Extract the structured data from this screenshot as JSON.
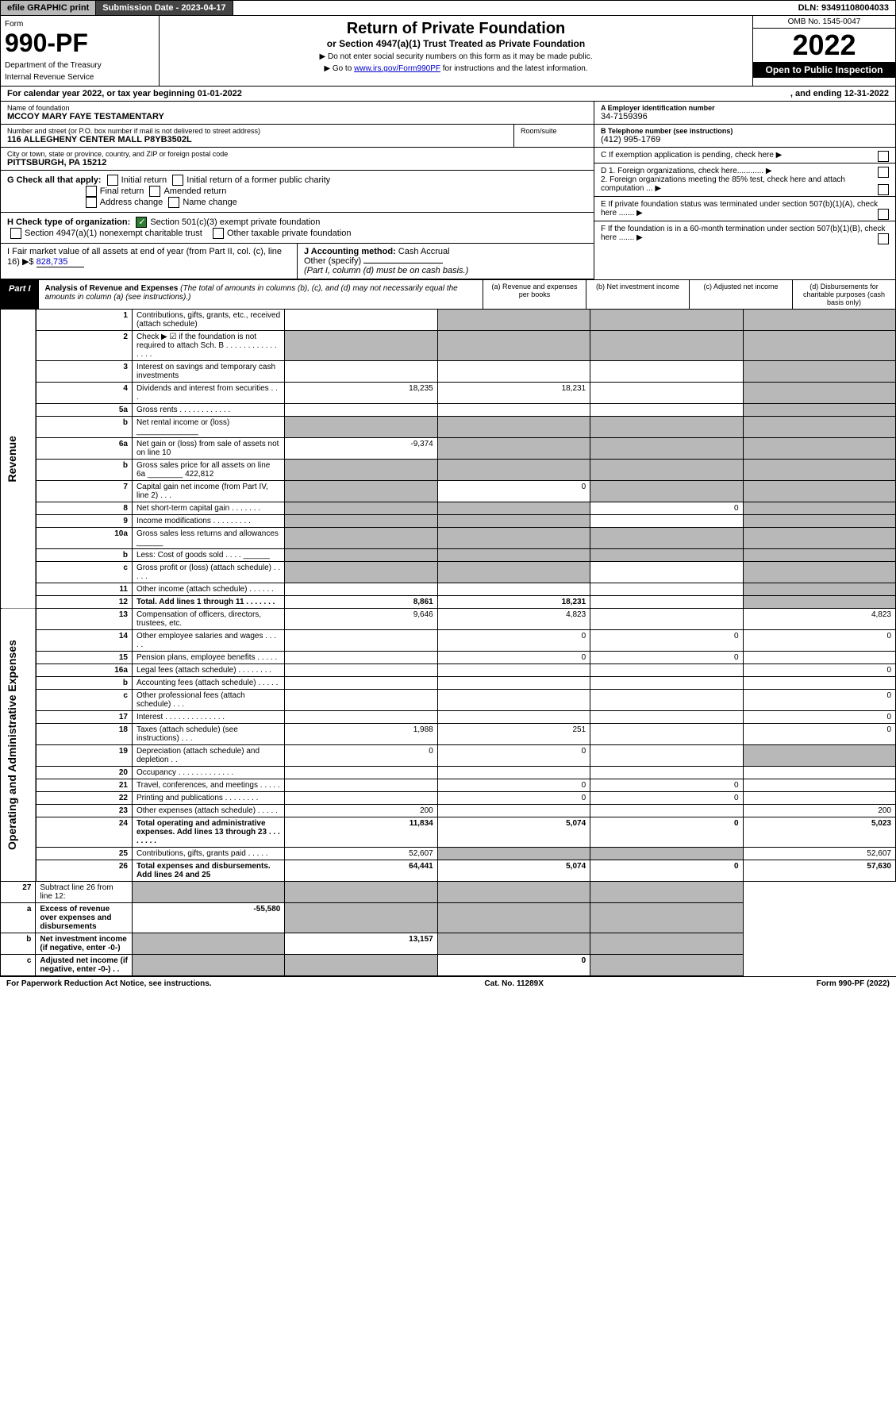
{
  "topbar": {
    "efile": "efile GRAPHIC print",
    "subdate_label": "Submission Date - 2023-04-17",
    "dln": "DLN: 93491108004033"
  },
  "header": {
    "form_label": "Form",
    "form_num": "990-PF",
    "dept": "Department of the Treasury",
    "irs": "Internal Revenue Service",
    "title": "Return of Private Foundation",
    "subtitle": "or Section 4947(a)(1) Trust Treated as Private Foundation",
    "inst1": "▶ Do not enter social security numbers on this form as it may be made public.",
    "inst2_pre": "▶ Go to ",
    "inst2_link": "www.irs.gov/Form990PF",
    "inst2_post": " for instructions and the latest information.",
    "omb": "OMB No. 1545-0047",
    "year": "2022",
    "open": "Open to Public Inspection"
  },
  "calyear": {
    "left": "For calendar year 2022, or tax year beginning 01-01-2022",
    "right": ", and ending 12-31-2022"
  },
  "entity": {
    "name_label": "Name of foundation",
    "name": "MCCOY MARY FAYE TESTAMENTARY",
    "addr_label": "Number and street (or P.O. box number if mail is not delivered to street address)",
    "addr": "116 ALLEGHENY CENTER MALL P8YB3502L",
    "room_label": "Room/suite",
    "city_label": "City or town, state or province, country, and ZIP or foreign postal code",
    "city": "PITTSBURGH, PA  15212",
    "ein_label": "A Employer identification number",
    "ein": "34-7159396",
    "tel_label": "B Telephone number (see instructions)",
    "tel": "(412) 995-1769",
    "c_label": "C If exemption application is pending, check here",
    "d1": "D 1. Foreign organizations, check here............",
    "d2": "2. Foreign organizations meeting the 85% test, check here and attach computation ...",
    "e": "E If private foundation status was terminated under section 507(b)(1)(A), check here .......",
    "f": "F If the foundation is in a 60-month termination under section 507(b)(1)(B), check here ......."
  },
  "checks": {
    "g_label": "G Check all that apply:",
    "g_opts": [
      "Initial return",
      "Initial return of a former public charity",
      "Final return",
      "Amended return",
      "Address change",
      "Name change"
    ],
    "h_label": "H Check type of organization:",
    "h_501c3": "Section 501(c)(3) exempt private foundation",
    "h_4947": "Section 4947(a)(1) nonexempt charitable trust",
    "h_other": "Other taxable private foundation",
    "i_label": "I Fair market value of all assets at end of year (from Part II, col. (c), line 16)",
    "i_value": "828,735",
    "j_label": "J Accounting method:",
    "j_cash": "Cash",
    "j_accrual": "Accrual",
    "j_other": "Other (specify)",
    "j_note": "(Part I, column (d) must be on cash basis.)"
  },
  "part1": {
    "tag": "Part I",
    "title": "Analysis of Revenue and Expenses",
    "title_note": "(The total of amounts in columns (b), (c), and (d) may not necessarily equal the amounts in column (a) (see instructions).)",
    "cols": {
      "a": "(a) Revenue and expenses per books",
      "b": "(b) Net investment income",
      "c": "(c) Adjusted net income",
      "d": "(d) Disbursements for charitable purposes (cash basis only)"
    }
  },
  "sections": {
    "rev": "Revenue",
    "ope": "Operating and Administrative Expenses"
  },
  "rows": [
    {
      "n": "1",
      "d": "Contributions, gifts, grants, etc., received (attach schedule)",
      "a": "",
      "b": "grey",
      "c": "grey",
      "dcol": "grey"
    },
    {
      "n": "2",
      "d": "Check ▶ ☑ if the foundation is not required to attach Sch. B   . . . . . . . . . . . . . . . .",
      "a": "grey",
      "b": "grey",
      "c": "grey",
      "dcol": "grey"
    },
    {
      "n": "3",
      "d": "Interest on savings and temporary cash investments",
      "a": "",
      "b": "",
      "c": "",
      "dcol": "grey"
    },
    {
      "n": "4",
      "d": "Dividends and interest from securities   . . .",
      "a": "18,235",
      "b": "18,231",
      "c": "",
      "dcol": "grey"
    },
    {
      "n": "5a",
      "d": "Gross rents   . . . . . . . . . . . .",
      "a": "",
      "b": "",
      "c": "",
      "dcol": "grey"
    },
    {
      "n": "b",
      "d": "Net rental income or (loss) ______________",
      "a": "grey",
      "b": "grey",
      "c": "grey",
      "dcol": "grey"
    },
    {
      "n": "6a",
      "d": "Net gain or (loss) from sale of assets not on line 10",
      "a": "-9,374",
      "b": "grey",
      "c": "grey",
      "dcol": "grey"
    },
    {
      "n": "b",
      "d": "Gross sales price for all assets on line 6a ________ 422,812",
      "a": "grey",
      "b": "grey",
      "c": "grey",
      "dcol": "grey"
    },
    {
      "n": "7",
      "d": "Capital gain net income (from Part IV, line 2)   . . .",
      "a": "grey",
      "b": "0",
      "c": "grey",
      "dcol": "grey"
    },
    {
      "n": "8",
      "d": "Net short-term capital gain   . . . . . . .",
      "a": "grey",
      "b": "grey",
      "c": "0",
      "dcol": "grey"
    },
    {
      "n": "9",
      "d": "Income modifications   . . . . . . . . .",
      "a": "grey",
      "b": "grey",
      "c": "",
      "dcol": "grey"
    },
    {
      "n": "10a",
      "d": "Gross sales less returns and allowances ______",
      "a": "grey",
      "b": "grey",
      "c": "grey",
      "dcol": "grey"
    },
    {
      "n": "b",
      "d": "Less: Cost of goods sold   . . . . ______",
      "a": "grey",
      "b": "grey",
      "c": "grey",
      "dcol": "grey"
    },
    {
      "n": "c",
      "d": "Gross profit or (loss) (attach schedule)   . . . . .",
      "a": "grey",
      "b": "grey",
      "c": "",
      "dcol": "grey"
    },
    {
      "n": "11",
      "d": "Other income (attach schedule)   . . . . . .",
      "a": "",
      "b": "",
      "c": "",
      "dcol": "grey"
    },
    {
      "n": "12",
      "d": "Total. Add lines 1 through 11   . . . . . . .",
      "a": "8,861",
      "b": "18,231",
      "c": "",
      "dcol": "grey",
      "bold": true
    }
  ],
  "exprows": [
    {
      "n": "13",
      "d": "Compensation of officers, directors, trustees, etc.",
      "a": "9,646",
      "b": "4,823",
      "c": "",
      "dcol": "4,823"
    },
    {
      "n": "14",
      "d": "Other employee salaries and wages   . . . . .",
      "a": "",
      "b": "0",
      "c": "0",
      "dcol": "0"
    },
    {
      "n": "15",
      "d": "Pension plans, employee benefits   . . . . .",
      "a": "",
      "b": "0",
      "c": "0",
      "dcol": ""
    },
    {
      "n": "16a",
      "d": "Legal fees (attach schedule)   . . . . . . . .",
      "a": "",
      "b": "",
      "c": "",
      "dcol": "0"
    },
    {
      "n": "b",
      "d": "Accounting fees (attach schedule)   . . . . .",
      "a": "",
      "b": "",
      "c": "",
      "dcol": ""
    },
    {
      "n": "c",
      "d": "Other professional fees (attach schedule)   . . .",
      "a": "",
      "b": "",
      "c": "",
      "dcol": "0"
    },
    {
      "n": "17",
      "d": "Interest   . . . . . . . . . . . . . .",
      "a": "",
      "b": "",
      "c": "",
      "dcol": "0"
    },
    {
      "n": "18",
      "d": "Taxes (attach schedule) (see instructions)   . . .",
      "a": "1,988",
      "b": "251",
      "c": "",
      "dcol": "0"
    },
    {
      "n": "19",
      "d": "Depreciation (attach schedule) and depletion   . .",
      "a": "0",
      "b": "0",
      "c": "",
      "dcol": "grey"
    },
    {
      "n": "20",
      "d": "Occupancy   . . . . . . . . . . . . .",
      "a": "",
      "b": "",
      "c": "",
      "dcol": ""
    },
    {
      "n": "21",
      "d": "Travel, conferences, and meetings   . . . . .",
      "a": "",
      "b": "0",
      "c": "0",
      "dcol": ""
    },
    {
      "n": "22",
      "d": "Printing and publications   . . . . . . . .",
      "a": "",
      "b": "0",
      "c": "0",
      "dcol": ""
    },
    {
      "n": "23",
      "d": "Other expenses (attach schedule)   . . . . .",
      "a": "200",
      "b": "",
      "c": "",
      "dcol": "200"
    },
    {
      "n": "24",
      "d": "Total operating and administrative expenses. Add lines 13 through 23   . . . . . . . .",
      "a": "11,834",
      "b": "5,074",
      "c": "0",
      "dcol": "5,023",
      "bold": true
    },
    {
      "n": "25",
      "d": "Contributions, gifts, grants paid   . . . . .",
      "a": "52,607",
      "b": "grey",
      "c": "grey",
      "dcol": "52,607"
    },
    {
      "n": "26",
      "d": "Total expenses and disbursements. Add lines 24 and 25",
      "a": "64,441",
      "b": "5,074",
      "c": "0",
      "dcol": "57,630",
      "bold": true
    }
  ],
  "netrows": [
    {
      "n": "27",
      "d": "Subtract line 26 from line 12:",
      "a": "grey",
      "b": "grey",
      "c": "grey",
      "dcol": "grey"
    },
    {
      "n": "a",
      "d": "Excess of revenue over expenses and disbursements",
      "a": "-55,580",
      "b": "grey",
      "c": "grey",
      "dcol": "grey",
      "bold": true
    },
    {
      "n": "b",
      "d": "Net investment income (if negative, enter -0-)",
      "a": "grey",
      "b": "13,157",
      "c": "grey",
      "dcol": "grey",
      "bold": true
    },
    {
      "n": "c",
      "d": "Adjusted net income (if negative, enter -0-)   . .",
      "a": "grey",
      "b": "grey",
      "c": "0",
      "dcol": "grey",
      "bold": true
    }
  ],
  "footer": {
    "left": "For Paperwork Reduction Act Notice, see instructions.",
    "mid": "Cat. No. 11289X",
    "right": "Form 990-PF (2022)"
  }
}
